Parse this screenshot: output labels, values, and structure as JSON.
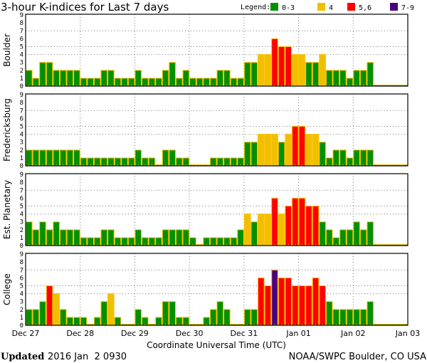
{
  "chart_data": {
    "type": "bar",
    "title": "3-hour K-indices for Last 7 days",
    "xlabel": "Coordinate Universal Time (UTC)",
    "ylim": [
      0,
      9
    ],
    "y_ticks": [
      "0",
      "1",
      "2",
      "3",
      "4",
      "5",
      "6",
      "7",
      "8",
      "9"
    ],
    "x_ticks": [
      "Dec 27",
      "Dec 28",
      "Dec 29",
      "Dec 30",
      "Dec 31",
      "Jan 01",
      "Jan 02",
      "Jan 03"
    ],
    "bars_per_day": 8,
    "legend": {
      "label": "Legend:",
      "placement": "top-right",
      "entries": [
        {
          "label": "0-3",
          "color": "#009000"
        },
        {
          "label": "4",
          "color": "#F0C000"
        },
        {
          "label": "5,6",
          "color": "#FF0000"
        },
        {
          "label": "7-9",
          "color": "#480080"
        }
      ]
    },
    "outline_color": "#FFC000",
    "series": [
      {
        "name": "Boulder",
        "values": [
          2,
          1,
          3,
          3,
          2,
          2,
          2,
          2,
          1,
          1,
          1,
          2,
          2,
          1,
          1,
          1,
          2,
          1,
          1,
          1,
          2,
          3,
          1,
          2,
          1,
          1,
          1,
          1,
          2,
          2,
          1,
          1,
          3,
          3,
          4,
          4,
          6,
          5,
          5,
          4,
          4,
          3,
          3,
          4,
          2,
          2,
          2,
          1,
          2,
          2,
          3,
          null,
          null,
          null,
          null,
          null
        ]
      },
      {
        "name": "Fredericksburg",
        "values": [
          2,
          2,
          2,
          2,
          2,
          2,
          2,
          2,
          1,
          1,
          1,
          1,
          1,
          1,
          1,
          1,
          2,
          1,
          1,
          0,
          2,
          2,
          1,
          1,
          0,
          0,
          0,
          1,
          1,
          1,
          1,
          1,
          3,
          3,
          4,
          4,
          4,
          3,
          4,
          5,
          5,
          4,
          4,
          3,
          1,
          2,
          2,
          1,
          2,
          2,
          2,
          null,
          null,
          null,
          null,
          null
        ]
      },
      {
        "name": "Est. Planetary",
        "values": [
          3,
          2,
          3,
          2,
          3,
          2,
          2,
          2,
          1,
          1,
          1,
          2,
          2,
          1,
          1,
          1,
          2,
          1,
          1,
          1,
          2,
          2,
          2,
          2,
          1,
          0,
          1,
          1,
          1,
          1,
          1,
          2,
          4,
          3,
          4,
          4,
          6,
          4,
          5,
          6,
          6,
          5,
          5,
          3,
          2,
          1,
          2,
          2,
          3,
          2,
          3,
          null,
          null,
          null,
          null,
          null
        ]
      },
      {
        "name": "College",
        "values": [
          2,
          2,
          3,
          5,
          4,
          2,
          1,
          1,
          1,
          0,
          1,
          3,
          4,
          1,
          0,
          0,
          2,
          1,
          0,
          1,
          3,
          3,
          1,
          1,
          0,
          0,
          1,
          2,
          3,
          2,
          0,
          0,
          2,
          2,
          6,
          5,
          7,
          6,
          6,
          5,
          5,
          5,
          6,
          5,
          3,
          2,
          2,
          2,
          2,
          2,
          3,
          null,
          null,
          null,
          null,
          null
        ]
      }
    ]
  },
  "footer": {
    "updated_label": "Updated",
    "updated_value": "2016 Jan  2 0930",
    "source": "NOAA/SWPC Boulder, CO USA"
  }
}
